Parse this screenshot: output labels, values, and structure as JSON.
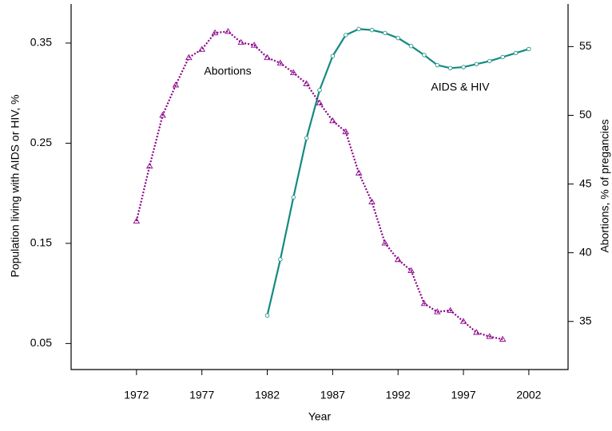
{
  "chart_data": {
    "type": "line",
    "xlabel": "Year",
    "ylabel": "Population living with AIDS or HIV, %",
    "y2label": "Abortions, % of pregancies",
    "annotations": [
      "Abortions",
      "AIDS & HIV"
    ],
    "xlim": [
      1967,
      2005
    ],
    "xticks": [
      1972,
      1977,
      1982,
      1987,
      1992,
      1997,
      2002
    ],
    "ylim": [
      0.024,
      0.389
    ],
    "yticks": [
      0.05,
      0.15,
      0.25,
      0.35
    ],
    "y2lim": [
      31.5,
      58.1
    ],
    "y2ticks": [
      35,
      40,
      45,
      50,
      55
    ],
    "series": [
      {
        "name": "AIDS & HIV",
        "color": "#138a80",
        "axis": "y",
        "x": [
          1982,
          1983,
          1984,
          1985,
          1986,
          1987,
          1988,
          1989,
          1990,
          1991,
          1992,
          1993,
          1994,
          1995,
          1996,
          1997,
          1998,
          1999,
          2000,
          2001,
          2002
        ],
        "values": [
          0.078,
          0.134,
          0.196,
          0.255,
          0.303,
          0.337,
          0.358,
          0.364,
          0.363,
          0.36,
          0.355,
          0.347,
          0.338,
          0.328,
          0.325,
          0.326,
          0.329,
          0.332,
          0.336,
          0.34,
          0.344
        ]
      },
      {
        "name": "Abortions",
        "color": "#8b008b",
        "axis": "y2",
        "x": [
          1972,
          1973,
          1974,
          1975,
          1976,
          1977,
          1978,
          1979,
          1980,
          1981,
          1982,
          1983,
          1984,
          1985,
          1986,
          1987,
          1988,
          1989,
          1990,
          1991,
          1992,
          1993,
          1994,
          1995,
          1996,
          1997,
          1998,
          1999,
          2000
        ],
        "values": [
          42.3,
          46.3,
          50.0,
          52.2,
          54.2,
          54.8,
          56.0,
          56.1,
          55.3,
          55.1,
          54.2,
          53.8,
          53.1,
          52.3,
          50.9,
          49.6,
          48.8,
          45.8,
          43.7,
          40.7,
          39.5,
          38.7,
          36.3,
          35.7,
          35.8,
          35.0,
          34.2,
          33.9,
          33.7
        ]
      }
    ]
  }
}
